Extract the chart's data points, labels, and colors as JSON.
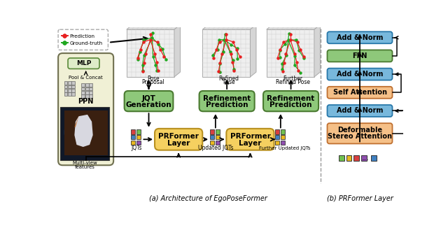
{
  "fig_width": 6.4,
  "fig_height": 3.26,
  "dpi": 100,
  "bg_color": "#ffffff",
  "colors": {
    "green_box": "#8ec87a",
    "green_box_edge": "#4a7a30",
    "green_light_bg": "#deecc8",
    "green_mlp_edge": "#5a8a3a",
    "yellow_box": "#f5d060",
    "yellow_box_edge": "#b89020",
    "blue_box": "#78b8dc",
    "blue_box_edge": "#2878aa",
    "orange_box": "#f5c088",
    "orange_box_edge": "#c07030",
    "ppn_bg": "#f0f0d5",
    "ppn_edge": "#707050",
    "pred_color": "#e82020",
    "gt_color": "#20a820",
    "sq_red": "#d84040",
    "sq_green": "#70c050",
    "sq_blue": "#4080c0",
    "sq_yellow": "#e8b820",
    "sq_yellow2": "#e8b820",
    "sq_purple": "#9050b0"
  },
  "caption_a": "(a) Architecture of EgoPoseFormer",
  "caption_b": "(b) PRFormer Layer",
  "legend_pred": "Prediction",
  "legend_gt": "Ground-truth"
}
